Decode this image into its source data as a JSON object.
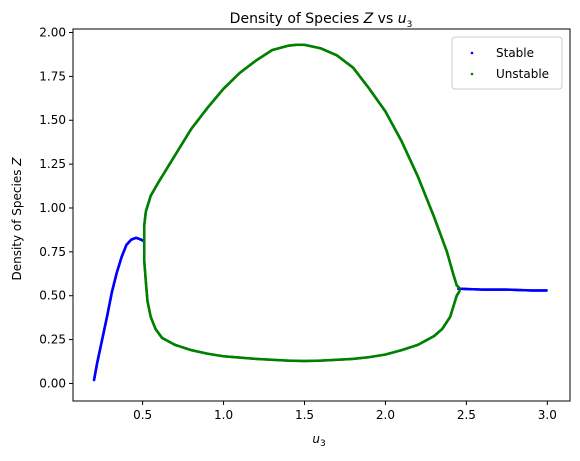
{
  "chart_data": {
    "type": "scatter",
    "title_prefix": "Density of Species ",
    "title_italic": "Z",
    "title_mid": " vs ",
    "title_var": "u",
    "title_sub": "3",
    "xlabel_var": "u",
    "xlabel_sub": "3",
    "ylabel_prefix": "Density of Species ",
    "ylabel_italic": "Z",
    "xlim": [
      0.07,
      3.14
    ],
    "ylim": [
      -0.1,
      2.02
    ],
    "xticks": [
      0.5,
      1.0,
      1.5,
      2.0,
      2.5,
      3.0
    ],
    "xtick_labels": [
      "0.5",
      "1.0",
      "1.5",
      "2.0",
      "2.5",
      "3.0"
    ],
    "yticks": [
      0.0,
      0.25,
      0.5,
      0.75,
      1.0,
      1.25,
      1.5,
      1.75,
      2.0
    ],
    "ytick_labels": [
      "0.00",
      "0.25",
      "0.50",
      "0.75",
      "1.00",
      "1.25",
      "1.50",
      "1.75",
      "2.00"
    ],
    "grid": false,
    "legend_position": "top-right",
    "series": [
      {
        "name": "Stable",
        "color": "#0000ff",
        "segments": [
          [
            [
              0.2,
              0.02
            ],
            [
              0.22,
              0.12
            ],
            [
              0.25,
              0.25
            ],
            [
              0.28,
              0.38
            ],
            [
              0.31,
              0.52
            ],
            [
              0.34,
              0.63
            ],
            [
              0.37,
              0.72
            ],
            [
              0.4,
              0.79
            ],
            [
              0.43,
              0.82
            ],
            [
              0.46,
              0.83
            ],
            [
              0.49,
              0.82
            ],
            [
              0.51,
              0.81
            ]
          ],
          [
            [
              2.45,
              0.54
            ],
            [
              2.6,
              0.535
            ],
            [
              2.75,
              0.535
            ],
            [
              2.9,
              0.53
            ],
            [
              3.0,
              0.53
            ]
          ]
        ]
      },
      {
        "name": "Unstable",
        "color": "#008000",
        "segments": [
          [
            [
              0.51,
              0.8
            ],
            [
              0.51,
              0.9
            ],
            [
              0.52,
              0.98
            ],
            [
              0.55,
              1.07
            ],
            [
              0.6,
              1.15
            ],
            [
              0.7,
              1.3
            ],
            [
              0.8,
              1.45
            ],
            [
              0.9,
              1.57
            ],
            [
              1.0,
              1.68
            ],
            [
              1.1,
              1.77
            ],
            [
              1.2,
              1.84
            ],
            [
              1.3,
              1.9
            ],
            [
              1.4,
              1.925
            ],
            [
              1.45,
              1.93
            ],
            [
              1.5,
              1.93
            ],
            [
              1.6,
              1.91
            ],
            [
              1.7,
              1.87
            ],
            [
              1.8,
              1.8
            ],
            [
              1.9,
              1.68
            ],
            [
              2.0,
              1.55
            ],
            [
              2.1,
              1.38
            ],
            [
              2.2,
              1.18
            ],
            [
              2.3,
              0.95
            ],
            [
              2.38,
              0.75
            ],
            [
              2.42,
              0.62
            ],
            [
              2.44,
              0.56
            ],
            [
              2.46,
              0.54
            ]
          ],
          [
            [
              0.51,
              0.8
            ],
            [
              0.51,
              0.7
            ],
            [
              0.52,
              0.58
            ],
            [
              0.53,
              0.47
            ],
            [
              0.55,
              0.38
            ],
            [
              0.58,
              0.31
            ],
            [
              0.62,
              0.26
            ],
            [
              0.7,
              0.22
            ],
            [
              0.8,
              0.19
            ],
            [
              0.9,
              0.17
            ],
            [
              1.0,
              0.155
            ],
            [
              1.2,
              0.14
            ],
            [
              1.4,
              0.13
            ],
            [
              1.5,
              0.128
            ],
            [
              1.6,
              0.13
            ],
            [
              1.8,
              0.14
            ],
            [
              1.9,
              0.15
            ],
            [
              2.0,
              0.165
            ],
            [
              2.1,
              0.19
            ],
            [
              2.2,
              0.22
            ],
            [
              2.3,
              0.27
            ],
            [
              2.35,
              0.31
            ],
            [
              2.4,
              0.38
            ],
            [
              2.42,
              0.44
            ],
            [
              2.44,
              0.5
            ],
            [
              2.46,
              0.53
            ]
          ]
        ]
      }
    ]
  }
}
